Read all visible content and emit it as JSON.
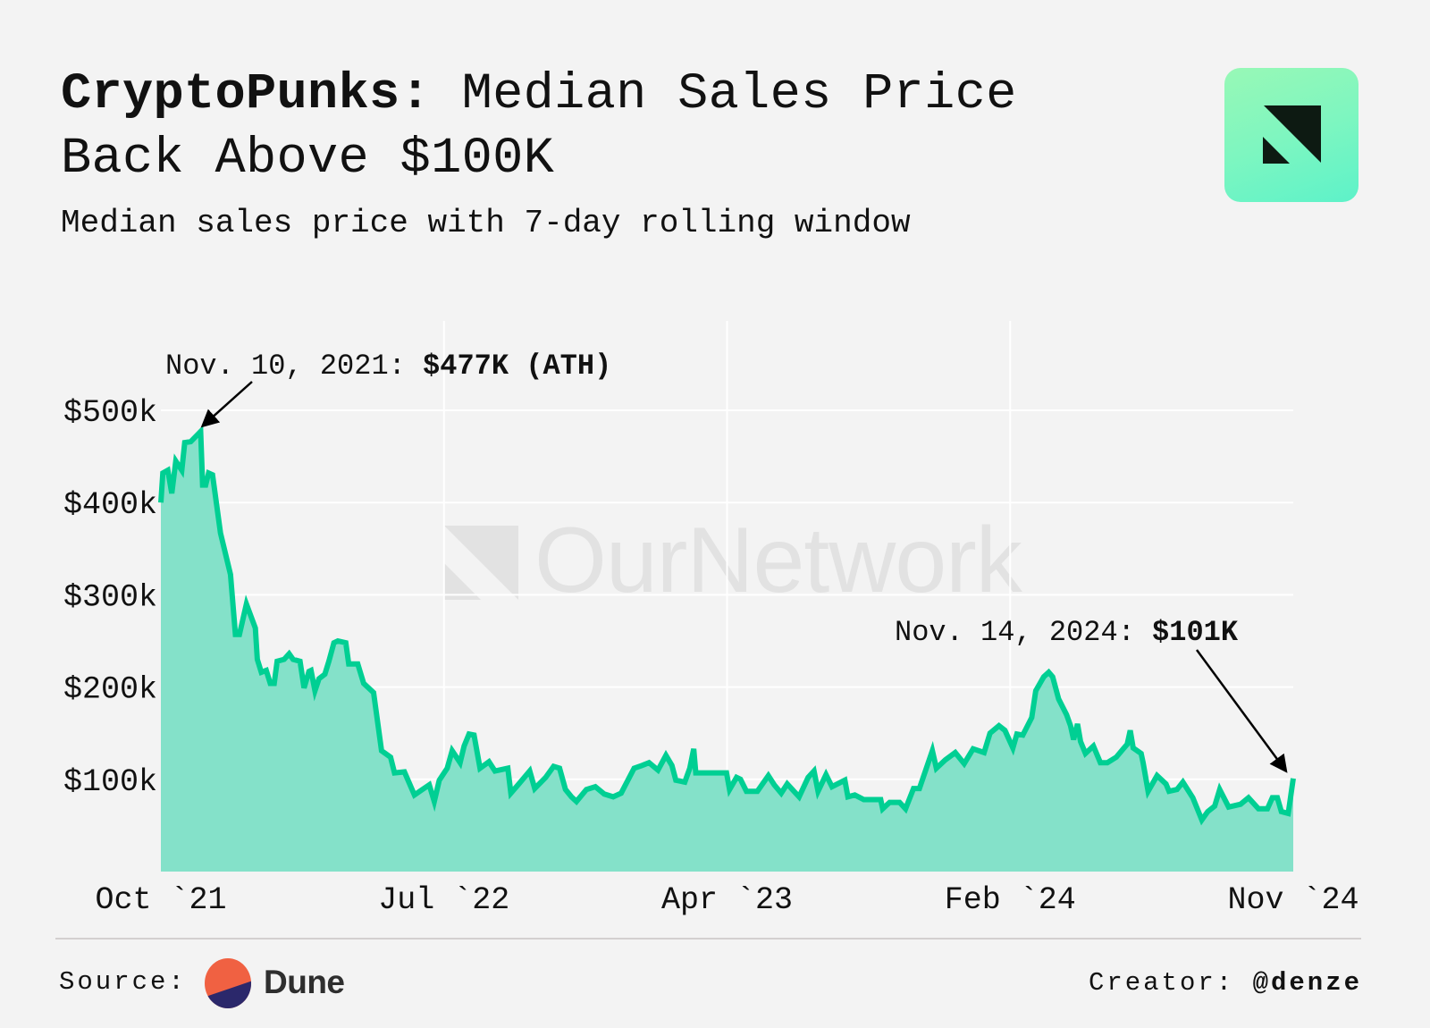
{
  "header": {
    "title_bold": "CryptoPunks:",
    "title_rest": " Median Sales Price",
    "title_line2": "Back Above $100K",
    "subtitle": "Median sales price with 7-day rolling window",
    "brand_logo": "ournetwork-logo"
  },
  "watermark": {
    "text": "OurNetwork"
  },
  "colors": {
    "line": "#00cf93",
    "area": "#7ddfc6",
    "background": "#f3f3f3",
    "grid": "#ffffff"
  },
  "chart_data": {
    "type": "area",
    "title": "CryptoPunks: Median Sales Price Back Above $100K",
    "subtitle": "Median sales price with 7-day rolling window",
    "xlabel": "",
    "ylabel": "",
    "start_date": "2021-10-01",
    "x_unit": "days since start_date",
    "ylim": [
      0,
      500
    ],
    "y_unit": "$k",
    "y_ticks": [
      100,
      200,
      300,
      400,
      500
    ],
    "y_tick_labels": [
      "$100k",
      "$200k",
      "$300k",
      "$400k",
      "$500k"
    ],
    "x_tick_labels": [
      "Oct `21",
      "Jul `22",
      "Apr `23",
      "Feb `24",
      "Nov `24"
    ],
    "grid": true,
    "legend": "none",
    "series": [
      {
        "name": "Median sales price (7-day rolling)",
        "points": [
          [
            0,
            400
          ],
          [
            2,
            432
          ],
          [
            7,
            435
          ],
          [
            11,
            410
          ],
          [
            15,
            445
          ],
          [
            21,
            435
          ],
          [
            24,
            465
          ],
          [
            30,
            466
          ],
          [
            40,
            477
          ],
          [
            42,
            419
          ],
          [
            45,
            419
          ],
          [
            48,
            432
          ],
          [
            52,
            430
          ],
          [
            60,
            367
          ],
          [
            70,
            322
          ],
          [
            75,
            257
          ],
          [
            79,
            257
          ],
          [
            86,
            290
          ],
          [
            95,
            264
          ],
          [
            97,
            230
          ],
          [
            101,
            216
          ],
          [
            106,
            218
          ],
          [
            110,
            204
          ],
          [
            114,
            204
          ],
          [
            117,
            228
          ],
          [
            124,
            230
          ],
          [
            129,
            236
          ],
          [
            133,
            230
          ],
          [
            140,
            228
          ],
          [
            144,
            199
          ],
          [
            149,
            217
          ],
          [
            151,
            218
          ],
          [
            155,
            196
          ],
          [
            159,
            209
          ],
          [
            165,
            214
          ],
          [
            169,
            228
          ],
          [
            174,
            248
          ],
          [
            178,
            250
          ],
          [
            186,
            248
          ],
          [
            189,
            225
          ],
          [
            198,
            225
          ],
          [
            204,
            204
          ],
          [
            214,
            194
          ],
          [
            222,
            131
          ],
          [
            231,
            124
          ],
          [
            235,
            107
          ],
          [
            245,
            108
          ],
          [
            255,
            83
          ],
          [
            263,
            89
          ],
          [
            270,
            94
          ],
          [
            275,
            76
          ],
          [
            280,
            99
          ],
          [
            288,
            112
          ],
          [
            293,
            131
          ],
          [
            301,
            118
          ],
          [
            305,
            136
          ],
          [
            310,
            149
          ],
          [
            315,
            148
          ],
          [
            321,
            112
          ],
          [
            330,
            119
          ],
          [
            336,
            109
          ],
          [
            349,
            112
          ],
          [
            352,
            85
          ],
          [
            360,
            95
          ],
          [
            371,
            109
          ],
          [
            376,
            90
          ],
          [
            387,
            102
          ],
          [
            395,
            114
          ],
          [
            401,
            112
          ],
          [
            407,
            89
          ],
          [
            413,
            81
          ],
          [
            418,
            76
          ],
          [
            428,
            89
          ],
          [
            437,
            92
          ],
          [
            446,
            84
          ],
          [
            455,
            81
          ],
          [
            463,
            85
          ],
          [
            476,
            112
          ],
          [
            484,
            115
          ],
          [
            491,
            118
          ],
          [
            500,
            110
          ],
          [
            508,
            126
          ],
          [
            514,
            115
          ],
          [
            518,
            99
          ],
          [
            527,
            97
          ],
          [
            532,
            112
          ],
          [
            536,
            133
          ],
          [
            538,
            107
          ],
          [
            561,
            107
          ],
          [
            569,
            107
          ],
          [
            572,
            89
          ],
          [
            579,
            102
          ],
          [
            583,
            100
          ],
          [
            589,
            87
          ],
          [
            600,
            87
          ],
          [
            611,
            104
          ],
          [
            617,
            94
          ],
          [
            624,
            85
          ],
          [
            630,
            95
          ],
          [
            642,
            81
          ],
          [
            651,
            102
          ],
          [
            657,
            109
          ],
          [
            661,
            87
          ],
          [
            669,
            105
          ],
          [
            675,
            92
          ],
          [
            688,
            99
          ],
          [
            691,
            81
          ],
          [
            698,
            83
          ],
          [
            707,
            78
          ],
          [
            724,
            78
          ],
          [
            726,
            68
          ],
          [
            733,
            75
          ],
          [
            743,
            75
          ],
          [
            749,
            68
          ],
          [
            757,
            90
          ],
          [
            763,
            90
          ],
          [
            776,
            131
          ],
          [
            780,
            112
          ],
          [
            789,
            121
          ],
          [
            799,
            129
          ],
          [
            808,
            117
          ],
          [
            817,
            133
          ],
          [
            828,
            129
          ],
          [
            834,
            150
          ],
          [
            843,
            158
          ],
          [
            849,
            153
          ],
          [
            857,
            134
          ],
          [
            861,
            149
          ],
          [
            867,
            148
          ],
          [
            876,
            167
          ],
          [
            880,
            196
          ],
          [
            888,
            211
          ],
          [
            893,
            216
          ],
          [
            897,
            211
          ],
          [
            903,
            187
          ],
          [
            911,
            170
          ],
          [
            915,
            158
          ],
          [
            918,
            143
          ],
          [
            922,
            160
          ],
          [
            925,
            141
          ],
          [
            930,
            128
          ],
          [
            938,
            136
          ],
          [
            945,
            118
          ],
          [
            952,
            118
          ],
          [
            961,
            124
          ],
          [
            968,
            133
          ],
          [
            972,
            138
          ],
          [
            975,
            153
          ],
          [
            978,
            134
          ],
          [
            986,
            128
          ],
          [
            988,
            118
          ],
          [
            993,
            87
          ],
          [
            1002,
            104
          ],
          [
            1011,
            95
          ],
          [
            1014,
            87
          ],
          [
            1022,
            89
          ],
          [
            1028,
            97
          ],
          [
            1038,
            80
          ],
          [
            1047,
            56
          ],
          [
            1053,
            65
          ],
          [
            1060,
            71
          ],
          [
            1065,
            89
          ],
          [
            1074,
            70
          ],
          [
            1086,
            73
          ],
          [
            1094,
            80
          ],
          [
            1104,
            68
          ],
          [
            1113,
            68
          ],
          [
            1118,
            80
          ],
          [
            1123,
            80
          ],
          [
            1127,
            65
          ],
          [
            1134,
            63
          ],
          [
            1139,
            101
          ]
        ]
      }
    ],
    "x_max_day": 1139,
    "annotations": [
      {
        "date_text": "Nov. 10, 2021: ",
        "value_text": "$477K (ATH)",
        "day": 40,
        "value": 477
      },
      {
        "date_text": "Nov. 14, 2024: ",
        "value_text": "$101K",
        "day": 1139,
        "value": 101
      }
    ]
  },
  "footer": {
    "source_label": "Source:",
    "source_name": "Dune",
    "creator_label": "Creator: ",
    "creator_handle": "@denze"
  }
}
